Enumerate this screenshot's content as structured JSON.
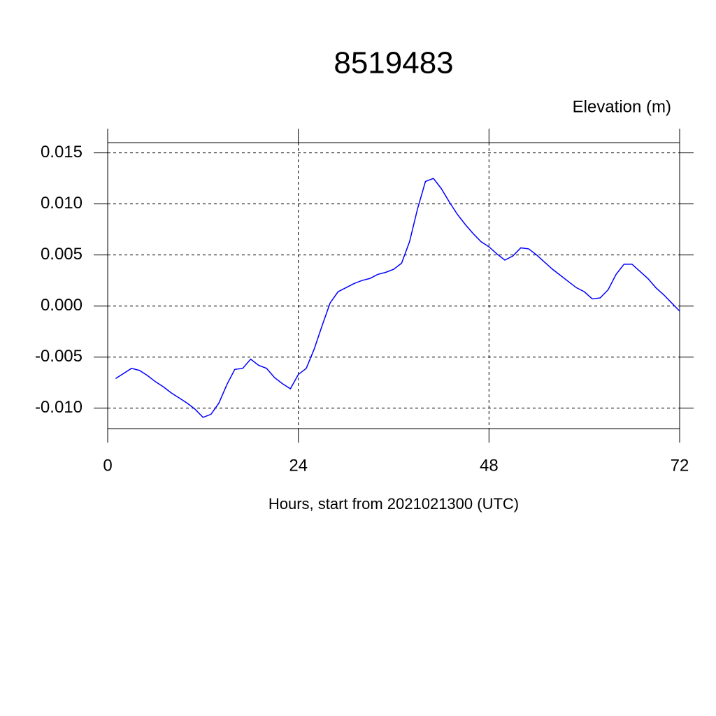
{
  "chart_data": {
    "type": "line",
    "title": "8519483",
    "y_label": "Elevation (m)",
    "x_label": "Hours, start from 2021021300 (UTC)",
    "x": [
      1,
      2,
      3,
      4,
      5,
      6,
      7,
      8,
      9,
      10,
      11,
      12,
      13,
      14,
      15,
      16,
      17,
      18,
      19,
      20,
      21,
      22,
      23,
      24,
      25,
      26,
      27,
      28,
      29,
      30,
      31,
      32,
      33,
      34,
      35,
      36,
      37,
      38,
      39,
      40,
      41,
      42,
      43,
      44,
      45,
      46,
      47,
      48,
      49,
      50,
      51,
      52,
      53,
      54,
      55,
      56,
      57,
      58,
      59,
      60,
      61,
      62,
      63,
      64,
      65,
      66,
      67,
      68,
      69,
      70,
      71,
      72
    ],
    "series": [
      {
        "color": "#0000ff",
        "values": [
          -0.0071,
          -0.0066,
          -0.0061,
          -0.0063,
          -0.0068,
          -0.0074,
          -0.0079,
          -0.0085,
          -0.009,
          -0.0095,
          -0.0101,
          -0.0109,
          -0.0106,
          -0.0095,
          -0.0077,
          -0.0062,
          -0.0061,
          -0.0052,
          -0.0058,
          -0.0061,
          -0.007,
          -0.0076,
          -0.0081,
          -0.0067,
          -0.0061,
          -0.0042,
          -0.0019,
          0.0003,
          0.0014,
          0.0018,
          0.0022,
          0.0025,
          0.0027,
          0.0031,
          0.0033,
          0.0036,
          0.0042,
          0.0063,
          0.0095,
          0.0122,
          0.0125,
          0.0115,
          0.0102,
          0.009,
          0.008,
          0.0071,
          0.0063,
          0.0058,
          0.0051,
          0.0045,
          0.0049,
          0.0057,
          0.0056,
          0.005,
          0.0043,
          0.0036,
          0.003,
          0.0024,
          0.0018,
          0.0014,
          0.0007,
          0.0008,
          0.0016,
          0.0031,
          0.0041,
          0.0041,
          0.0034,
          0.0027,
          0.0018,
          0.0011,
          0.0003,
          -0.0005
        ]
      }
    ],
    "xlim": [
      0,
      72
    ],
    "xticks": [
      0,
      24,
      48,
      72
    ],
    "ylim": [
      -0.012,
      0.016
    ],
    "yticks": [
      {
        "value": -0.01,
        "label": "-0.010"
      },
      {
        "value": -0.005,
        "label": "-0.005"
      },
      {
        "value": 0,
        "label": "0.000"
      },
      {
        "value": 0.005,
        "label": "0.005"
      },
      {
        "value": 0.01,
        "label": "0.010"
      },
      {
        "value": 0.015,
        "label": "0.015"
      }
    ],
    "grid": true
  }
}
